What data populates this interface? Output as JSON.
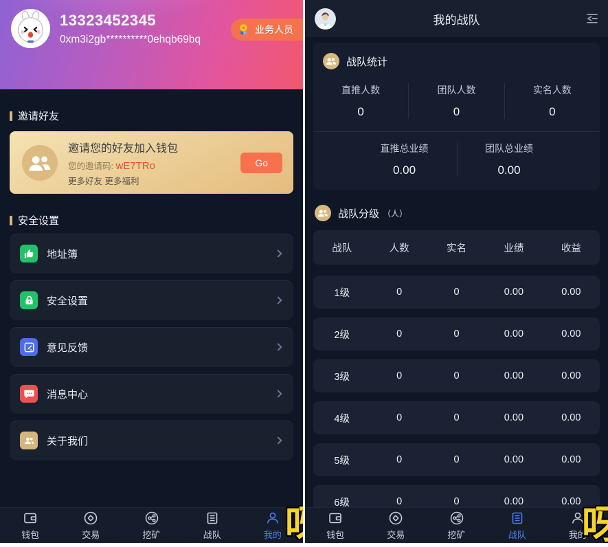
{
  "left": {
    "header": {
      "phone": "13323452345",
      "address": "0xm3i2gb**********0ehqb69bq",
      "badge": "业务人员"
    },
    "invite": {
      "section": "邀请好友",
      "title": "邀请您的好友加入钱包",
      "code_label": "您的邀请码: ",
      "code": "wE7TRo",
      "more": "更多好友 更多福利",
      "go": "Go"
    },
    "menu": {
      "section": "安全设置",
      "items": [
        {
          "label": "地址簿",
          "icon": "address-book-icon",
          "color": "#23c16b"
        },
        {
          "label": "安全设置",
          "icon": "lock-icon",
          "color": "#23c16b"
        },
        {
          "label": "意见反馈",
          "icon": "feedback-icon",
          "color": "#4f6bec"
        },
        {
          "label": "消息中心",
          "icon": "message-icon",
          "color": "#ec5050"
        },
        {
          "label": "关于我们",
          "icon": "about-us-icon",
          "color": "#d5b57c"
        }
      ]
    }
  },
  "right": {
    "title": "我的战队",
    "stats": {
      "section": "战队统计",
      "row1": [
        {
          "label": "直推人数",
          "value": "0"
        },
        {
          "label": "团队人数",
          "value": "0"
        },
        {
          "label": "实名人数",
          "value": "0"
        }
      ],
      "row2": [
        {
          "label": "直推总业绩",
          "value": "0.00"
        },
        {
          "label": "团队总业绩",
          "value": "0.00"
        }
      ]
    },
    "levels": {
      "section": "战队分级",
      "suffix": "（人）",
      "columns": [
        "战队",
        "人数",
        "实名",
        "业绩",
        "收益"
      ],
      "rows": [
        [
          "1级",
          "0",
          "0",
          "0.00",
          "0.00"
        ],
        [
          "2级",
          "0",
          "0",
          "0.00",
          "0.00"
        ],
        [
          "3级",
          "0",
          "0",
          "0.00",
          "0.00"
        ],
        [
          "4级",
          "0",
          "0",
          "0.00",
          "0.00"
        ],
        [
          "5级",
          "0",
          "0",
          "0.00",
          "0.00"
        ],
        [
          "6级",
          "0",
          "0",
          "0.00",
          "0.00"
        ]
      ]
    }
  },
  "nav": {
    "items": [
      {
        "label": "钱包",
        "icon": "wallet-icon"
      },
      {
        "label": "交易",
        "icon": "trade-icon"
      },
      {
        "label": "挖矿",
        "icon": "mining-icon"
      },
      {
        "label": "战队",
        "icon": "team-icon"
      },
      {
        "label": "我的",
        "icon": "me-icon"
      }
    ],
    "active_left": "我的",
    "active_right": "战队"
  },
  "watermark": "呀",
  "colors": {
    "accent_blue": "#4d7bf2",
    "badge_orange": "#f5724e",
    "gold": "#d9b87f",
    "invite_code_red": "#f04a31",
    "go_button": "#f5724c",
    "page_bg": "#0f1727",
    "card_bg": "#1a2233"
  }
}
